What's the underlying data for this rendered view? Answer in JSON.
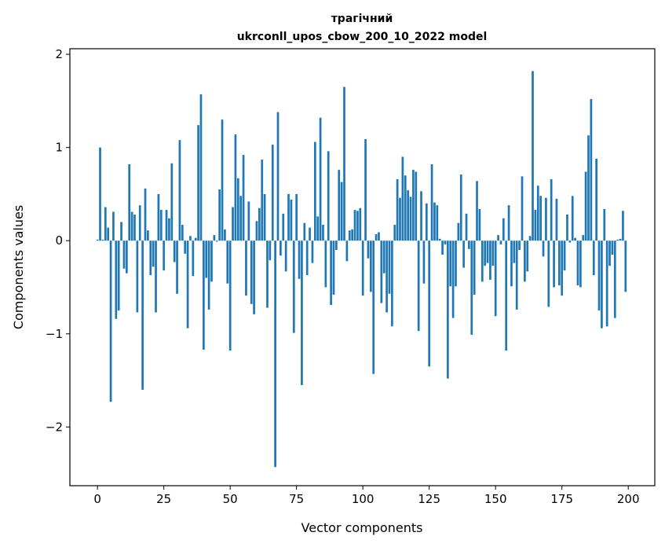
{
  "chart_data": {
    "type": "bar",
    "title": "трагічний",
    "subtitle": "ukrconll_upos_cbow_200_10_2022 model",
    "xlabel": "Vector components",
    "ylabel": "Components values",
    "xlim": [
      -10.4,
      210
    ],
    "ylim": [
      -2.63,
      2.06
    ],
    "xticks": [
      0,
      25,
      50,
      75,
      100,
      125,
      150,
      175,
      200
    ],
    "yticks": [
      -2,
      -1,
      0,
      1,
      2
    ],
    "ytick_labels": [
      "−2",
      "−1",
      "0",
      "1",
      "2"
    ],
    "grid": false,
    "color": "#1f77b4",
    "values": [
      0.01,
      1.0,
      0.01,
      0.36,
      0.14,
      -1.73,
      0.31,
      -0.84,
      -0.75,
      0.2,
      -0.3,
      -0.35,
      0.82,
      0.31,
      0.28,
      -0.77,
      0.38,
      -1.6,
      0.56,
      0.11,
      -0.37,
      -0.28,
      -0.77,
      0.5,
      0.33,
      -0.32,
      0.33,
      0.24,
      0.83,
      -0.23,
      -0.57,
      1.08,
      0.17,
      -0.14,
      -0.94,
      0.05,
      -0.38,
      0.03,
      1.24,
      1.57,
      -1.17,
      -0.4,
      -0.74,
      -0.44,
      0.06,
      -0.01,
      0.55,
      1.3,
      0.12,
      -0.46,
      -1.18,
      0.36,
      1.14,
      0.67,
      0.48,
      0.92,
      -0.59,
      0.42,
      -0.68,
      -0.79,
      0.21,
      0.35,
      0.87,
      0.5,
      -0.72,
      -0.21,
      1.03,
      -2.43,
      1.38,
      -0.16,
      0.29,
      -0.33,
      0.5,
      0.44,
      -0.99,
      0.5,
      -0.41,
      -1.55,
      0.19,
      -0.37,
      0.14,
      -0.24,
      1.06,
      0.26,
      1.32,
      0.17,
      -0.5,
      0.96,
      -0.69,
      -0.58,
      -0.1,
      0.76,
      0.63,
      1.65,
      -0.22,
      0.11,
      0.12,
      0.33,
      0.32,
      0.35,
      -0.59,
      1.09,
      -0.19,
      -0.55,
      -1.43,
      0.07,
      0.09,
      -0.67,
      -0.35,
      -0.77,
      -0.57,
      -0.92,
      0.17,
      0.66,
      0.46,
      0.9,
      0.7,
      0.54,
      0.47,
      0.76,
      0.74,
      -0.97,
      0.53,
      -0.46,
      0.4,
      -1.35,
      0.82,
      0.41,
      0.38,
      0.02,
      -0.15,
      -0.04,
      -1.48,
      -0.49,
      -0.83,
      -0.49,
      0.19,
      0.71,
      -0.29,
      0.29,
      -0.09,
      -1.01,
      -0.58,
      0.64,
      0.34,
      -0.44,
      -0.27,
      -0.24,
      -0.42,
      -0.27,
      -0.81,
      0.06,
      -0.04,
      0.24,
      -1.18,
      0.38,
      -0.49,
      -0.24,
      -0.74,
      -0.1,
      0.69,
      -0.44,
      -0.33,
      0.05,
      1.82,
      0.33,
      0.59,
      0.48,
      -0.17,
      0.46,
      -0.71,
      0.66,
      -0.5,
      0.45,
      -0.48,
      -0.59,
      -0.32,
      0.28,
      -0.02,
      0.48,
      0.03,
      -0.48,
      -0.5,
      0.06,
      0.74,
      1.13,
      1.52,
      -0.37,
      0.88,
      -0.75,
      -0.94,
      0.34,
      -0.92,
      -0.27,
      -0.15,
      -0.83,
      0.01,
      0.02,
      0.32,
      -0.55
    ]
  }
}
